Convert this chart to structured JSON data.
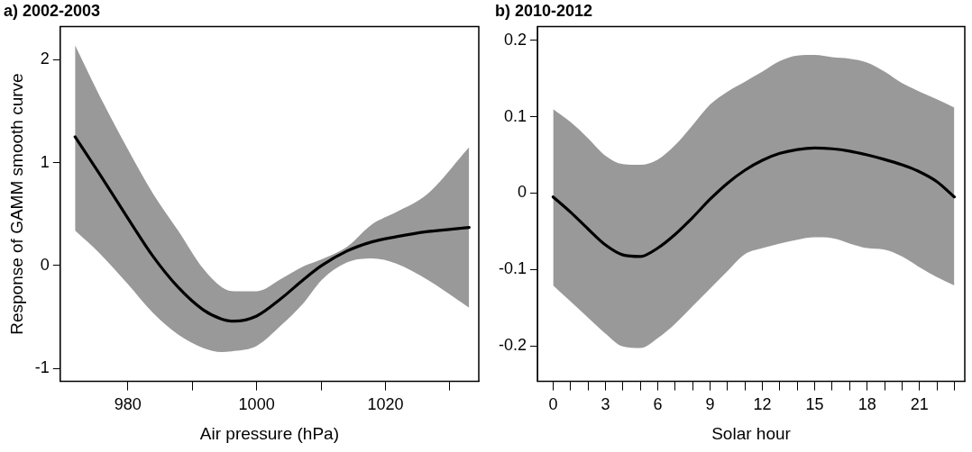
{
  "chart_data": [
    {
      "type": "line",
      "title": "a) 2002-2003",
      "xlabel": "Air pressure (hPa)",
      "ylabel": "Response of GAMM smooth curve",
      "x": [
        971.8,
        975.6,
        980,
        983.9,
        987.8,
        991.7,
        994.6,
        996.5,
        1000,
        1003.8,
        1007.2,
        1010.1,
        1014,
        1017.9,
        1021.7,
        1026.6,
        1033
      ],
      "series": [
        {
          "color": "#000000",
          "values": [
            1.25,
            0.89,
            0.46,
            0.09,
            -0.21,
            -0.43,
            -0.52,
            -0.54,
            -0.49,
            -0.32,
            -0.14,
            0,
            0.14,
            0.23,
            0.28,
            0.33,
            0.37
          ],
          "lower": [
            0.34,
            0.12,
            -0.18,
            -0.46,
            -0.67,
            -0.8,
            -0.84,
            -0.83,
            -0.78,
            -0.58,
            -0.37,
            -0.14,
            0.03,
            0.07,
            0.02,
            -0.14,
            -0.41
          ],
          "upper": [
            2.14,
            1.65,
            1.13,
            0.7,
            0.34,
            -0.03,
            -0.21,
            -0.25,
            -0.25,
            -0.13,
            -0.01,
            0.06,
            0.18,
            0.4,
            0.52,
            0.7,
            1.15
          ]
        }
      ],
      "xlim": [
        969.5,
        1034.5
      ],
      "ylim": [
        -1.125,
        2.32
      ],
      "xticks": [
        980,
        {
          "value": 990,
          "label": null
        },
        1000,
        {
          "value": 1010,
          "label": null
        },
        1020,
        {
          "value": 1030,
          "label": null
        }
      ],
      "yticks": [
        -1,
        0,
        1,
        2
      ],
      "grid": false,
      "legend": false,
      "marker": "none",
      "line_style": "solid"
    },
    {
      "type": "line",
      "title": "b) 2010-2012",
      "xlabel": "Solar hour",
      "x": [
        0,
        1,
        2,
        3,
        4,
        5,
        6,
        7,
        8,
        9,
        10,
        11,
        12,
        13,
        14,
        15,
        16,
        17,
        18,
        19,
        20,
        21,
        22,
        23
      ],
      "series": [
        {
          "color": "#000000",
          "values": [
            -0.005,
            -0.025,
            -0.047,
            -0.068,
            -0.081,
            -0.083,
            -0.072,
            -0.054,
            -0.032,
            -0.008,
            0.013,
            0.03,
            0.043,
            0.052,
            0.057,
            0.059,
            0.058,
            0.055,
            0.05,
            0.044,
            0.037,
            0.028,
            0.015,
            -0.005
          ],
          "lower": [
            -0.121,
            -0.142,
            -0.163,
            -0.184,
            -0.201,
            -0.203,
            -0.19,
            -0.171,
            -0.148,
            -0.125,
            -0.102,
            -0.08,
            -0.072,
            -0.066,
            -0.061,
            -0.058,
            -0.059,
            -0.066,
            -0.072,
            -0.074,
            -0.083,
            -0.097,
            -0.11,
            -0.121
          ],
          "upper": [
            0.11,
            0.093,
            0.072,
            0.049,
            0.038,
            0.037,
            0.044,
            0.063,
            0.089,
            0.116,
            0.133,
            0.146,
            0.159,
            0.173,
            0.18,
            0.181,
            0.178,
            0.176,
            0.171,
            0.159,
            0.144,
            0.133,
            0.123,
            0.112
          ]
        }
      ],
      "xlim": [
        -0.9,
        23.6
      ],
      "ylim": [
        -0.2467,
        0.218
      ],
      "xticks": [
        0,
        {
          "value": 1,
          "label": null
        },
        {
          "value": 2,
          "label": null
        },
        3,
        {
          "value": 4,
          "label": null
        },
        {
          "value": 5,
          "label": null
        },
        6,
        {
          "value": 7,
          "label": null
        },
        {
          "value": 8,
          "label": null
        },
        9,
        {
          "value": 10,
          "label": null
        },
        {
          "value": 11,
          "label": null
        },
        12,
        {
          "value": 13,
          "label": null
        },
        {
          "value": 14,
          "label": null
        },
        15,
        {
          "value": 16,
          "label": null
        },
        {
          "value": 17,
          "label": null
        },
        18,
        {
          "value": 19,
          "label": null
        },
        {
          "value": 20,
          "label": null
        },
        21,
        {
          "value": 22,
          "label": null
        },
        {
          "value": 23,
          "label": null
        }
      ],
      "yticks": [
        -0.2,
        -0.1,
        0,
        0.1,
        0.2
      ],
      "grid": false,
      "legend": false,
      "marker": "none",
      "line_style": "solid"
    }
  ]
}
